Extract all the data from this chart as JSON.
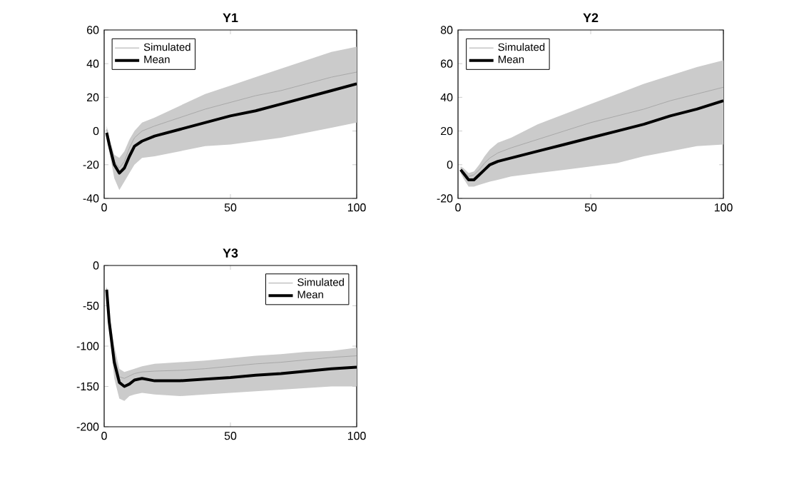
{
  "chart_data": [
    {
      "type": "line",
      "title": "Y1",
      "x": [
        1,
        2,
        4,
        6,
        8,
        10,
        12,
        15,
        20,
        30,
        40,
        50,
        60,
        70,
        80,
        90,
        100
      ],
      "xlim": [
        0,
        100
      ],
      "xticks": [
        0,
        50,
        100
      ],
      "ylim": [
        -40,
        60
      ],
      "yticks": [
        -40,
        -20,
        0,
        20,
        40,
        60
      ],
      "legend": "top left",
      "series": [
        {
          "name": "Simulated",
          "color": "#a8a8a8",
          "values": [
            1,
            -6,
            -18,
            -22,
            -18,
            -10,
            -4,
            0,
            3,
            8,
            13,
            17,
            21,
            24,
            28,
            32,
            35
          ],
          "lower": [
            -3,
            -12,
            -28,
            -35,
            -30,
            -25,
            -20,
            -16,
            -15,
            -12,
            -9,
            -8,
            -6,
            -4,
            -1,
            2,
            5
          ],
          "upper": [
            3,
            -4,
            -14,
            -16,
            -12,
            -5,
            0,
            5,
            8,
            15,
            22,
            27,
            32,
            37,
            42,
            47,
            50
          ]
        },
        {
          "name": "Mean",
          "color": "#000000",
          "values": [
            -1,
            -8,
            -20,
            -25,
            -22,
            -15,
            -9,
            -6,
            -3,
            1,
            5,
            9,
            12,
            16,
            20,
            24,
            28
          ]
        }
      ]
    },
    {
      "type": "line",
      "title": "Y2",
      "x": [
        1,
        2,
        4,
        6,
        8,
        10,
        12,
        15,
        20,
        30,
        40,
        50,
        60,
        70,
        80,
        90,
        100
      ],
      "xlim": [
        0,
        100
      ],
      "xticks": [
        0,
        50,
        100
      ],
      "ylim": [
        -20,
        80
      ],
      "yticks": [
        -20,
        0,
        20,
        40,
        60,
        80
      ],
      "legend": "top left",
      "series": [
        {
          "name": "Simulated",
          "color": "#a8a8a8",
          "values": [
            -2,
            -4,
            -7,
            -6,
            -3,
            1,
            4,
            7,
            10,
            15,
            20,
            25,
            29,
            33,
            38,
            42,
            46
          ],
          "lower": [
            -5,
            -8,
            -13,
            -13,
            -12,
            -11,
            -10,
            -9,
            -7,
            -5,
            -3,
            -1,
            1,
            5,
            8,
            11,
            12
          ],
          "upper": [
            -1,
            -2,
            -5,
            -4,
            0,
            5,
            9,
            13,
            16,
            24,
            30,
            36,
            42,
            48,
            53,
            58,
            62
          ]
        },
        {
          "name": "Mean",
          "color": "#000000",
          "values": [
            -3,
            -5,
            -9,
            -9,
            -6,
            -3,
            0,
            2,
            4,
            8,
            12,
            16,
            20,
            24,
            29,
            33,
            38
          ]
        }
      ]
    },
    {
      "type": "line",
      "title": "Y3",
      "x": [
        1,
        2,
        4,
        6,
        8,
        10,
        12,
        15,
        20,
        30,
        40,
        50,
        60,
        70,
        80,
        90,
        100
      ],
      "xlim": [
        0,
        100
      ],
      "xticks": [
        0,
        50,
        100
      ],
      "ylim": [
        -200,
        0
      ],
      "yticks": [
        -200,
        -150,
        -100,
        -50,
        0
      ],
      "legend": "top right",
      "series": [
        {
          "name": "Simulated",
          "color": "#a8a8a8",
          "values": [
            -28,
            -65,
            -112,
            -138,
            -140,
            -137,
            -134,
            -132,
            -131,
            -130,
            -128,
            -125,
            -122,
            -120,
            -117,
            -114,
            -112
          ],
          "lower": [
            -35,
            -80,
            -140,
            -165,
            -168,
            -162,
            -160,
            -158,
            -160,
            -162,
            -160,
            -158,
            -156,
            -154,
            -152,
            -150,
            -150
          ],
          "upper": [
            -25,
            -60,
            -100,
            -128,
            -132,
            -130,
            -128,
            -125,
            -122,
            -120,
            -118,
            -115,
            -112,
            -110,
            -107,
            -106,
            -102
          ]
        },
        {
          "name": "Mean",
          "color": "#000000",
          "values": [
            -30,
            -70,
            -120,
            -145,
            -150,
            -147,
            -142,
            -140,
            -143,
            -143,
            -141,
            -139,
            -136,
            -134,
            -131,
            -128,
            -126
          ]
        }
      ]
    }
  ]
}
